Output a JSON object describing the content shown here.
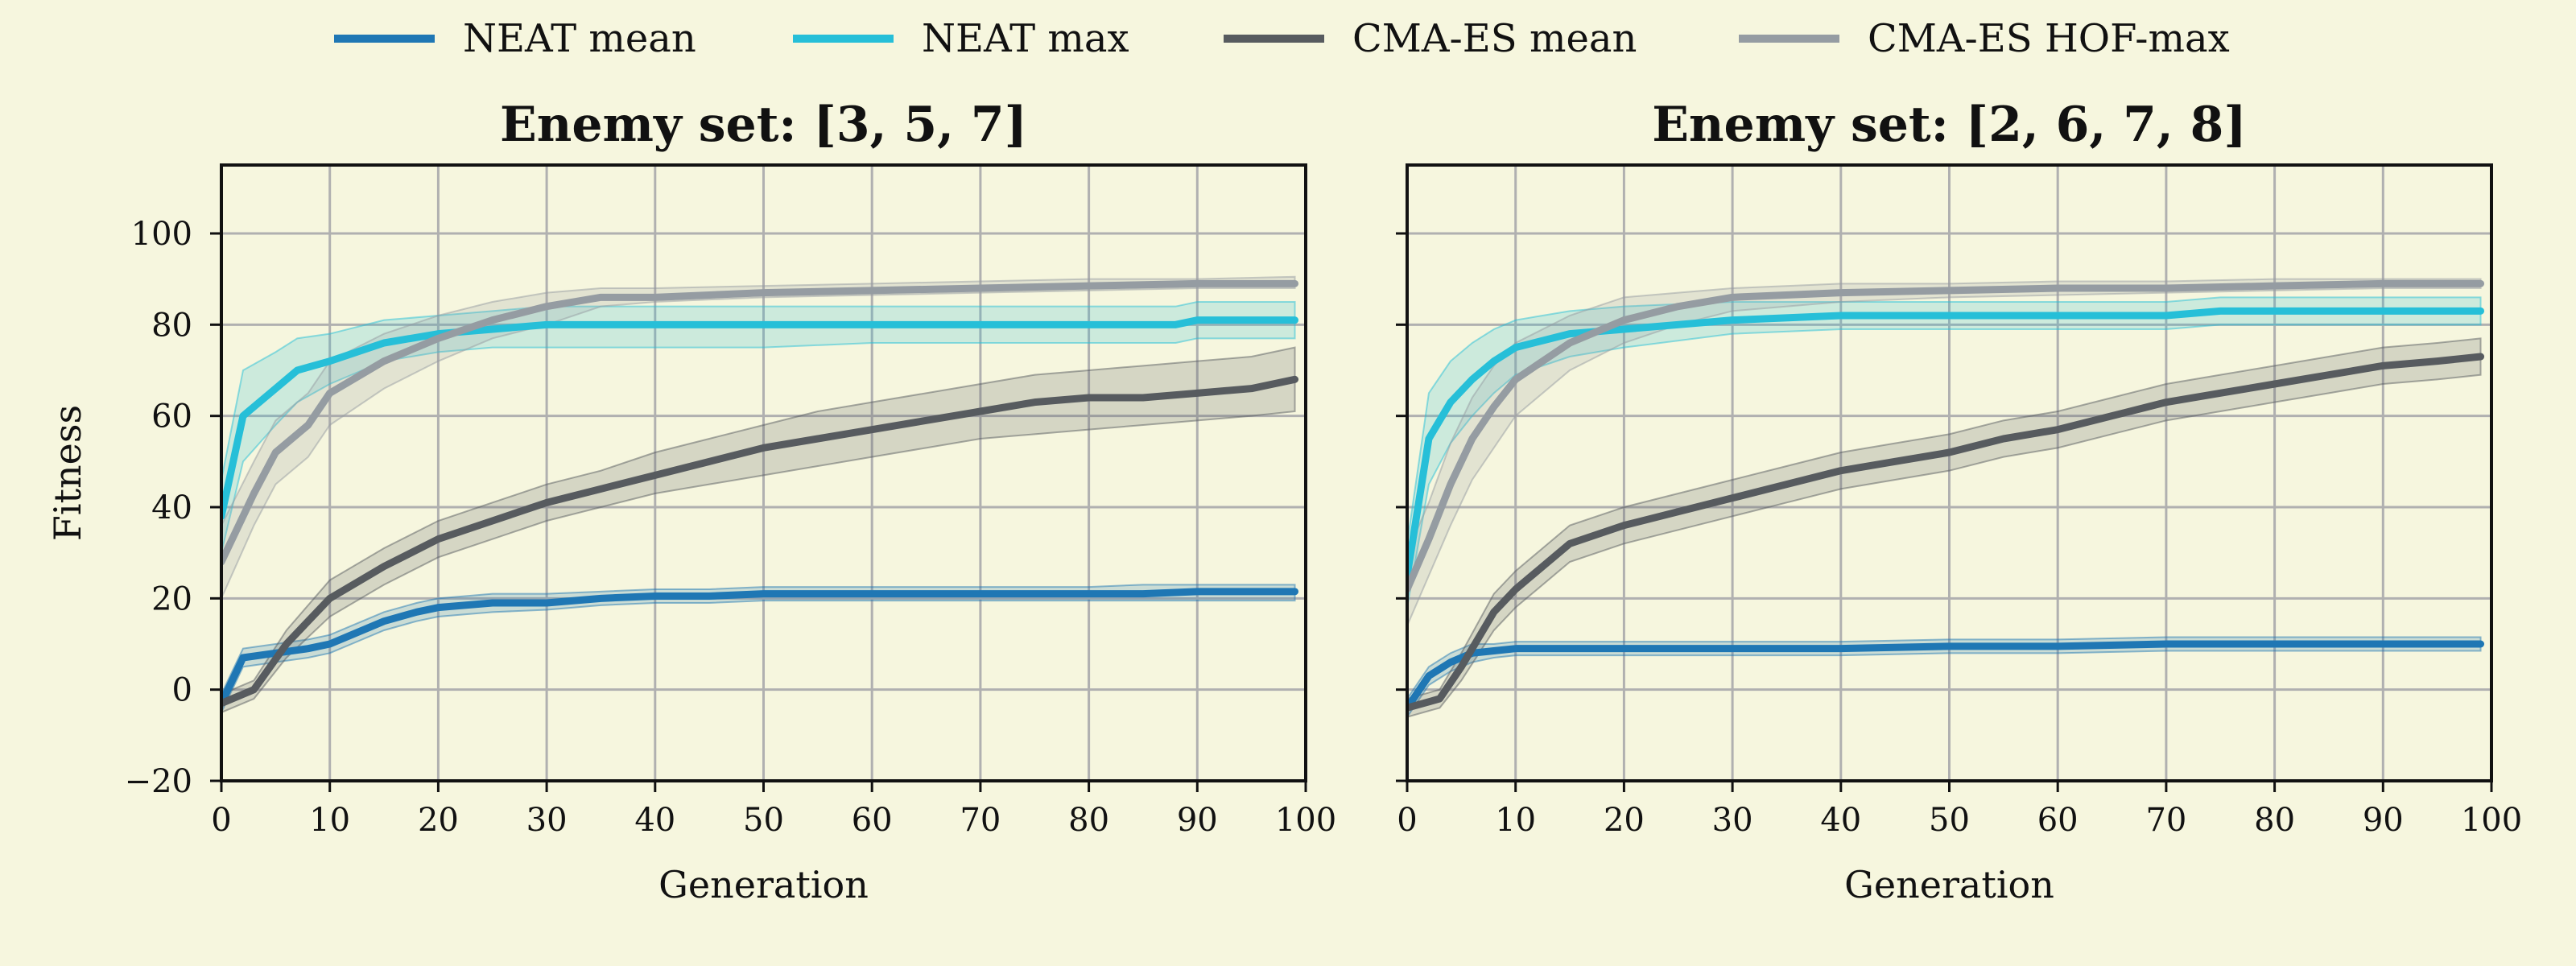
{
  "chart_data": {
    "type": "line",
    "legend": {
      "placement": "top-center",
      "entries": [
        {
          "name": "NEAT mean",
          "color": "#1f77b4"
        },
        {
          "name": "NEAT max",
          "color": "#26bfd8"
        },
        {
          "name": "CMA-ES mean",
          "color": "#575b5f"
        },
        {
          "name": "CMA-ES HOF-max",
          "color": "#959ca2"
        }
      ]
    },
    "colors": {
      "NEAT mean": "#1f77b4",
      "NEAT max": "#26bfd8",
      "CMA-ES mean": "#575b5f",
      "CMA-ES HOF-max": "#959ca2",
      "background": "#f6f6de",
      "grid": "#b0b0b0"
    },
    "panels": [
      {
        "title": "Enemy set: [3, 5, 7]",
        "xlabel": "Generation",
        "ylabel": "Fitness",
        "xlim": [
          0,
          100
        ],
        "ylim": [
          -20,
          115
        ],
        "xticks": [
          0,
          10,
          20,
          30,
          40,
          50,
          60,
          70,
          80,
          90,
          100
        ],
        "yticks": [
          -20,
          0,
          20,
          40,
          60,
          80,
          100
        ],
        "grid": true,
        "series": [
          {
            "name": "NEAT mean",
            "x": [
              0,
              2,
              5,
              8,
              10,
              12,
              15,
              18,
              20,
              25,
              30,
              35,
              40,
              45,
              50,
              55,
              60,
              65,
              70,
              75,
              80,
              85,
              90,
              95,
              99
            ],
            "y": [
              -3,
              7,
              8,
              9,
              10,
              12,
              15,
              17,
              18,
              19,
              19,
              20,
              20.5,
              20.5,
              21,
              21,
              21,
              21,
              21,
              21,
              21,
              21,
              21.5,
              21.5,
              21.5
            ],
            "lower": [
              -5,
              5,
              6,
              7,
              8,
              10,
              13,
              15,
              16,
              17,
              17.5,
              18.5,
              19,
              19,
              19.5,
              19.5,
              19.5,
              19.5,
              19.5,
              19.5,
              19.5,
              19.5,
              19.5,
              19.5,
              19.5
            ],
            "upper": [
              -1,
              9,
              10,
              11,
              12,
              14,
              17,
              19,
              20,
              21,
              21,
              21.5,
              22,
              22,
              22.5,
              22.5,
              22.5,
              22.5,
              22.5,
              22.5,
              22.5,
              23,
              23,
              23,
              23
            ]
          },
          {
            "name": "NEAT max",
            "x": [
              0,
              2,
              5,
              7,
              10,
              15,
              20,
              25,
              30,
              40,
              50,
              60,
              70,
              80,
              88,
              90,
              99
            ],
            "y": [
              38,
              60,
              66,
              70,
              72,
              76,
              78,
              79,
              80,
              80,
              80,
              80,
              80,
              80,
              80,
              81,
              81
            ],
            "lower": [
              30,
              50,
              58,
              63,
              67,
              72,
              74,
              75,
              75,
              75,
              75,
              76,
              76,
              76,
              76,
              77,
              77
            ],
            "upper": [
              46,
              70,
              74,
              77,
              78,
              81,
              82,
              83,
              84,
              84,
              84,
              84,
              84,
              84,
              84,
              85,
              85
            ]
          },
          {
            "name": "CMA-ES mean",
            "x": [
              0,
              3,
              6,
              10,
              15,
              20,
              25,
              30,
              35,
              40,
              45,
              50,
              55,
              60,
              65,
              70,
              75,
              80,
              85,
              90,
              95,
              99
            ],
            "y": [
              -3,
              0,
              10,
              20,
              27,
              33,
              37,
              41,
              44,
              47,
              50,
              53,
              55,
              57,
              59,
              61,
              63,
              64,
              64,
              65,
              66,
              68
            ],
            "lower": [
              -5,
              -2,
              7,
              16,
              23,
              29,
              33,
              37,
              40,
              43,
              45,
              47,
              49,
              51,
              53,
              55,
              56,
              57,
              58,
              59,
              60,
              61
            ],
            "upper": [
              -1,
              2,
              13,
              24,
              31,
              37,
              41,
              45,
              48,
              52,
              55,
              58,
              61,
              63,
              65,
              67,
              69,
              70,
              71,
              72,
              73,
              75
            ]
          },
          {
            "name": "CMA-ES HOF-max",
            "x": [
              0,
              3,
              5,
              8,
              10,
              15,
              20,
              25,
              30,
              35,
              40,
              50,
              60,
              70,
              80,
              90,
              99
            ],
            "y": [
              28,
              43,
              52,
              58,
              65,
              72,
              77,
              81,
              84,
              86,
              86,
              87,
              87.5,
              88,
              88.5,
              89,
              89
            ],
            "lower": [
              20,
              36,
              45,
              51,
              58,
              66,
              72,
              77,
              80,
              84,
              85,
              86,
              86.5,
              87,
              87.5,
              88,
              88
            ],
            "upper": [
              36,
              50,
              59,
              65,
              72,
              78,
              82,
              85,
              87,
              88,
              88,
              88.5,
              89,
              89.5,
              90,
              90,
              90.5
            ]
          }
        ]
      },
      {
        "title": "Enemy set: [2, 6, 7, 8]",
        "xlabel": "Generation",
        "ylabel": "",
        "xlim": [
          0,
          100
        ],
        "ylim": [
          -20,
          115
        ],
        "xticks": [
          0,
          10,
          20,
          30,
          40,
          50,
          60,
          70,
          80,
          90,
          100
        ],
        "yticks": [
          -20,
          0,
          20,
          40,
          60,
          80,
          100
        ],
        "grid": true,
        "series": [
          {
            "name": "NEAT mean",
            "x": [
              0,
              2,
              4,
              6,
              8,
              10,
              15,
              20,
              30,
              40,
              50,
              60,
              70,
              80,
              90,
              99
            ],
            "y": [
              -4,
              3,
              6,
              8,
              8.5,
              9,
              9,
              9,
              9,
              9,
              9.5,
              9.5,
              10,
              10,
              10,
              10
            ],
            "lower": [
              -6,
              1,
              4,
              6,
              7,
              7.5,
              7.5,
              7.5,
              7.5,
              7.5,
              8,
              8,
              8.5,
              8.5,
              8.5,
              8.5
            ],
            "upper": [
              -2,
              5,
              8,
              10,
              10,
              10.5,
              10.5,
              10.5,
              10.5,
              10.5,
              11,
              11,
              11.5,
              11.5,
              11.5,
              11.5
            ]
          },
          {
            "name": "NEAT max",
            "x": [
              0,
              2,
              4,
              6,
              8,
              10,
              15,
              20,
              30,
              40,
              50,
              60,
              70,
              75,
              90,
              99
            ],
            "y": [
              25,
              55,
              63,
              68,
              72,
              75,
              78,
              79,
              81,
              82,
              82,
              82,
              82,
              83,
              83,
              83
            ],
            "lower": [
              18,
              45,
              54,
              60,
              65,
              69,
              73,
              75,
              78,
              79,
              79,
              79,
              79,
              80,
              80,
              80
            ],
            "upper": [
              32,
              65,
              72,
              76,
              79,
              81,
              83,
              84,
              85,
              85,
              85,
              85,
              85,
              86,
              86,
              86
            ]
          },
          {
            "name": "CMA-ES mean",
            "x": [
              0,
              3,
              5,
              8,
              10,
              15,
              20,
              25,
              30,
              35,
              40,
              45,
              50,
              55,
              60,
              65,
              70,
              75,
              80,
              85,
              90,
              95,
              99
            ],
            "y": [
              -4,
              -2,
              5,
              17,
              22,
              32,
              36,
              39,
              42,
              45,
              48,
              50,
              52,
              55,
              57,
              60,
              63,
              65,
              67,
              69,
              71,
              72,
              73
            ],
            "lower": [
              -6,
              -4,
              2,
              13,
              18,
              28,
              32,
              35,
              38,
              41,
              44,
              46,
              48,
              51,
              53,
              56,
              59,
              61,
              63,
              65,
              67,
              68,
              69
            ],
            "upper": [
              -2,
              0,
              8,
              21,
              26,
              36,
              40,
              43,
              46,
              49,
              52,
              54,
              56,
              59,
              61,
              64,
              67,
              69,
              71,
              73,
              75,
              76,
              77
            ]
          },
          {
            "name": "CMA-ES HOF-max",
            "x": [
              0,
              2,
              4,
              6,
              8,
              10,
              15,
              20,
              25,
              30,
              40,
              50,
              60,
              70,
              80,
              90,
              99
            ],
            "y": [
              22,
              33,
              45,
              55,
              62,
              68,
              76,
              81,
              84,
              86,
              87,
              87.5,
              88,
              88,
              88.5,
              89,
              89
            ],
            "lower": [
              14,
              25,
              36,
              46,
              53,
              60,
              70,
              76,
              80,
              83,
              85,
              86,
              86.5,
              87,
              87.5,
              88,
              88
            ],
            "upper": [
              30,
              41,
              54,
              64,
              71,
              76,
              82,
              86,
              87,
              88,
              89,
              89,
              89.5,
              89.5,
              90,
              90,
              90
            ]
          }
        ]
      }
    ]
  }
}
